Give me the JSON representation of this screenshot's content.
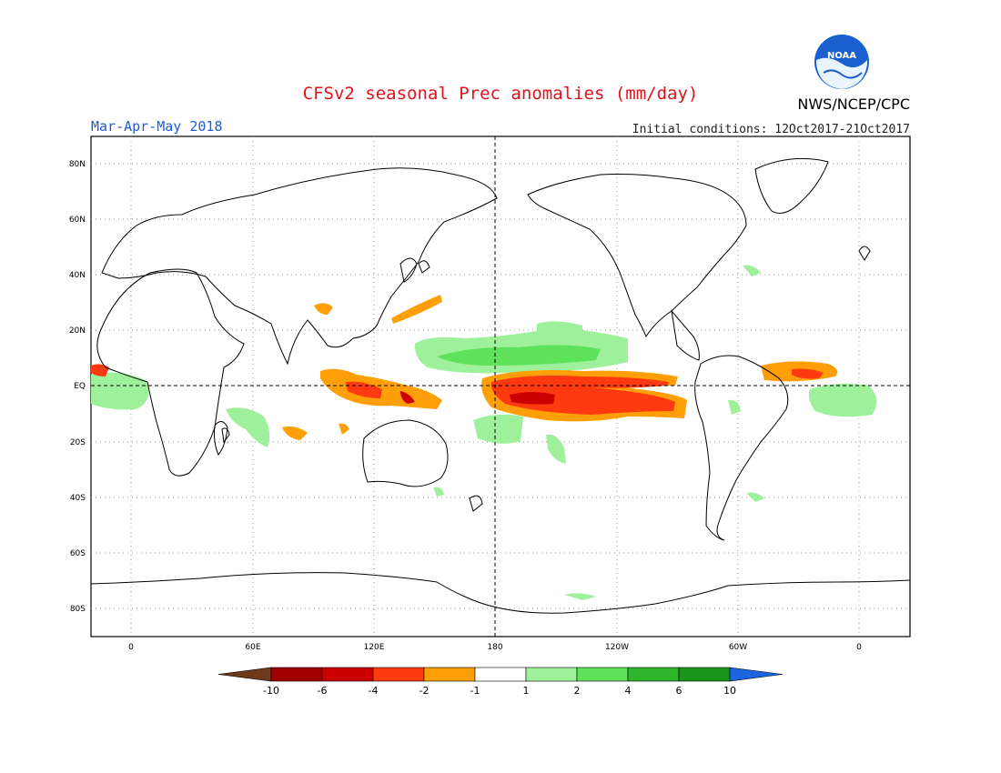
{
  "header": {
    "title": "CFSv2 seasonal Prec anomalies (mm/day)",
    "agency": "NWS/NCEP/CPC",
    "season": "Mar-Apr-May 2018",
    "initial_conditions": "Initial conditions: 12Oct2017-21Oct2017",
    "logo_text": "NOAA"
  },
  "map": {
    "lat_labels": [
      "80N",
      "60N",
      "40N",
      "20N",
      "EQ",
      "20S",
      "40S",
      "60S",
      "80S"
    ],
    "lon_labels": [
      "0",
      "60E",
      "120E",
      "180",
      "120W",
      "60W",
      "0"
    ]
  },
  "colorbar": {
    "colors": [
      "#6e3a1c",
      "#a00000",
      "#cc0000",
      "#ff3a10",
      "#ff9f08",
      "#ffffff",
      "#9ff09a",
      "#5ee25a",
      "#2fb52c",
      "#18961a",
      "#1c64e0"
    ],
    "labels": [
      "-10",
      "-6",
      "-4",
      "-2",
      "-1",
      "1",
      "2",
      "4",
      "6",
      "10"
    ]
  }
}
